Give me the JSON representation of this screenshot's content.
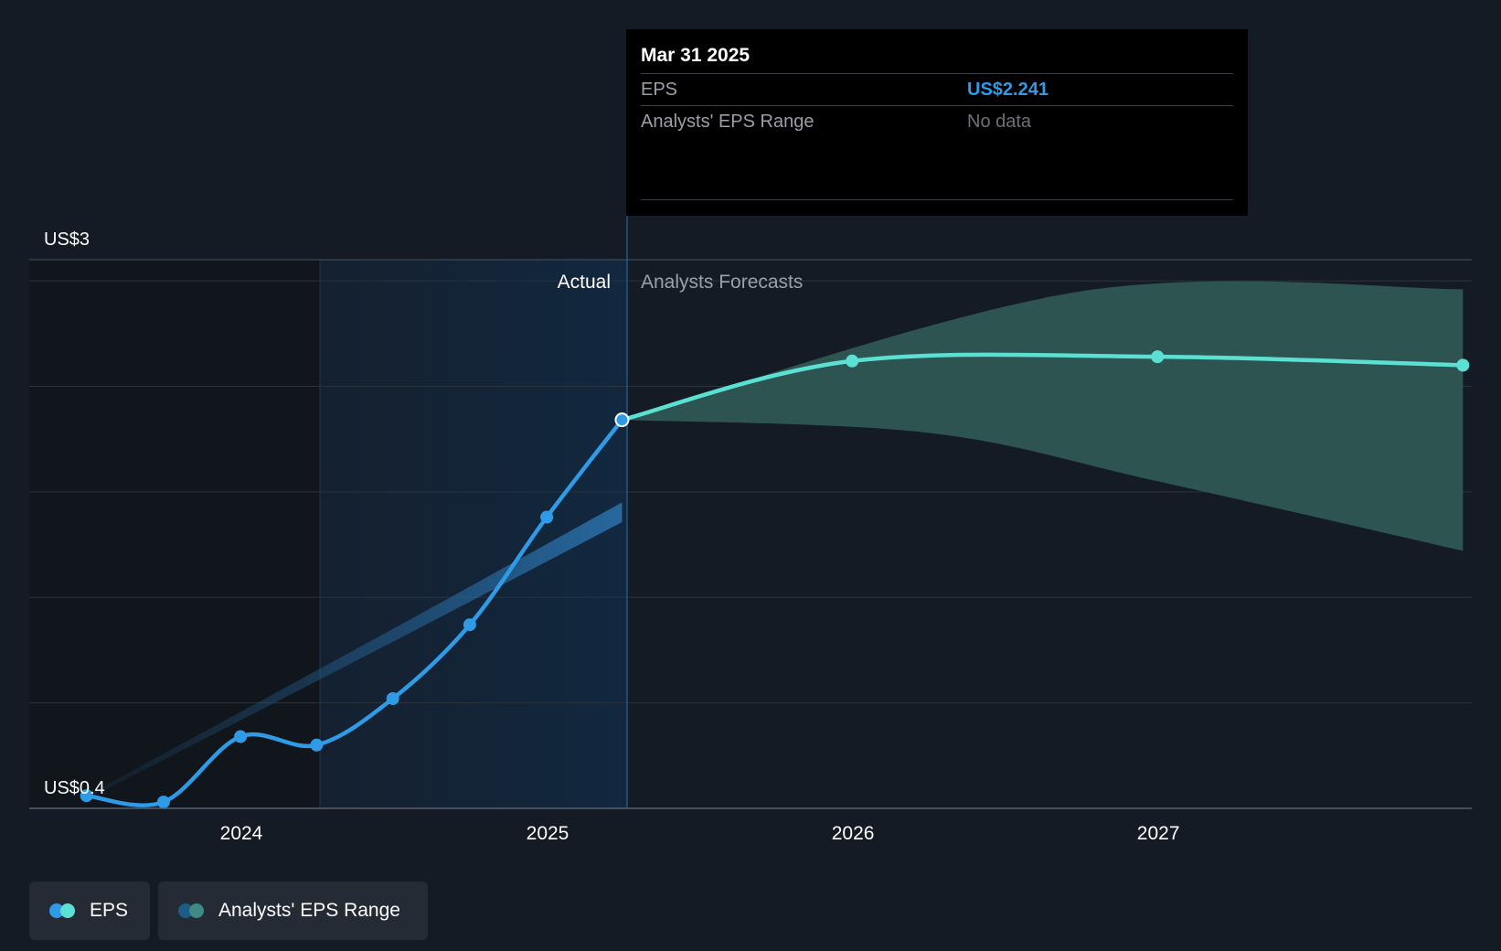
{
  "chart_data": {
    "type": "line",
    "ylabel_top": "US$3",
    "ylabel_bottom": "US$0.4",
    "ylim": [
      0.4,
      3
    ],
    "x_ticks": [
      "2024",
      "2025",
      "2026",
      "2027"
    ],
    "region_labels": {
      "actual": "Actual",
      "forecast": "Analysts Forecasts"
    },
    "series": [
      {
        "name": "EPS",
        "color": "#2f9be6",
        "points": [
          [
            "2023-06-30",
            0.46
          ],
          [
            "2023-09-30",
            0.43
          ],
          [
            "2023-12-31",
            0.74
          ],
          [
            "2024-03-31",
            0.7
          ],
          [
            "2024-06-30",
            0.92
          ],
          [
            "2024-09-30",
            1.27
          ],
          [
            "2024-12-31",
            1.78
          ],
          [
            "2025-03-31",
            2.241
          ]
        ]
      },
      {
        "name": "EPS forecast",
        "color": "#5ce0d3",
        "points": [
          [
            "2025-03-31",
            2.241
          ],
          [
            "2025-12-31",
            2.52
          ],
          [
            "2026-12-31",
            2.54
          ],
          [
            "2027-12-31",
            2.5
          ]
        ]
      }
    ],
    "forecast_range": {
      "name": "Analysts' EPS Range",
      "upper": [
        [
          "2025-03-31",
          2.241
        ],
        [
          "2026-09-30",
          2.85
        ],
        [
          "2027-12-31",
          2.86
        ]
      ],
      "lower": [
        [
          "2025-03-31",
          2.241
        ],
        [
          "2026-03-31",
          2.18
        ],
        [
          "2026-12-31",
          1.95
        ],
        [
          "2027-12-31",
          1.62
        ]
      ]
    },
    "past_estimate_band": [
      [
        "2023-06-30",
        0.46
      ],
      [
        "2024-06-30",
        1.25
      ],
      [
        "2025-03-31",
        1.85
      ]
    ]
  },
  "tooltip": {
    "date": "Mar 31 2025",
    "eps_label": "EPS",
    "eps_value": "US$2.241",
    "range_label": "Analysts' EPS Range",
    "range_value": "No data"
  },
  "legend": {
    "eps": "EPS",
    "range": "Analysts' EPS Range"
  },
  "colors": {
    "background": "#151b24",
    "eps_actual": "#2f9be6",
    "eps_forecast": "#5ce0d3",
    "range_fill": "#2f5754",
    "actual_shade": "#14273d"
  }
}
